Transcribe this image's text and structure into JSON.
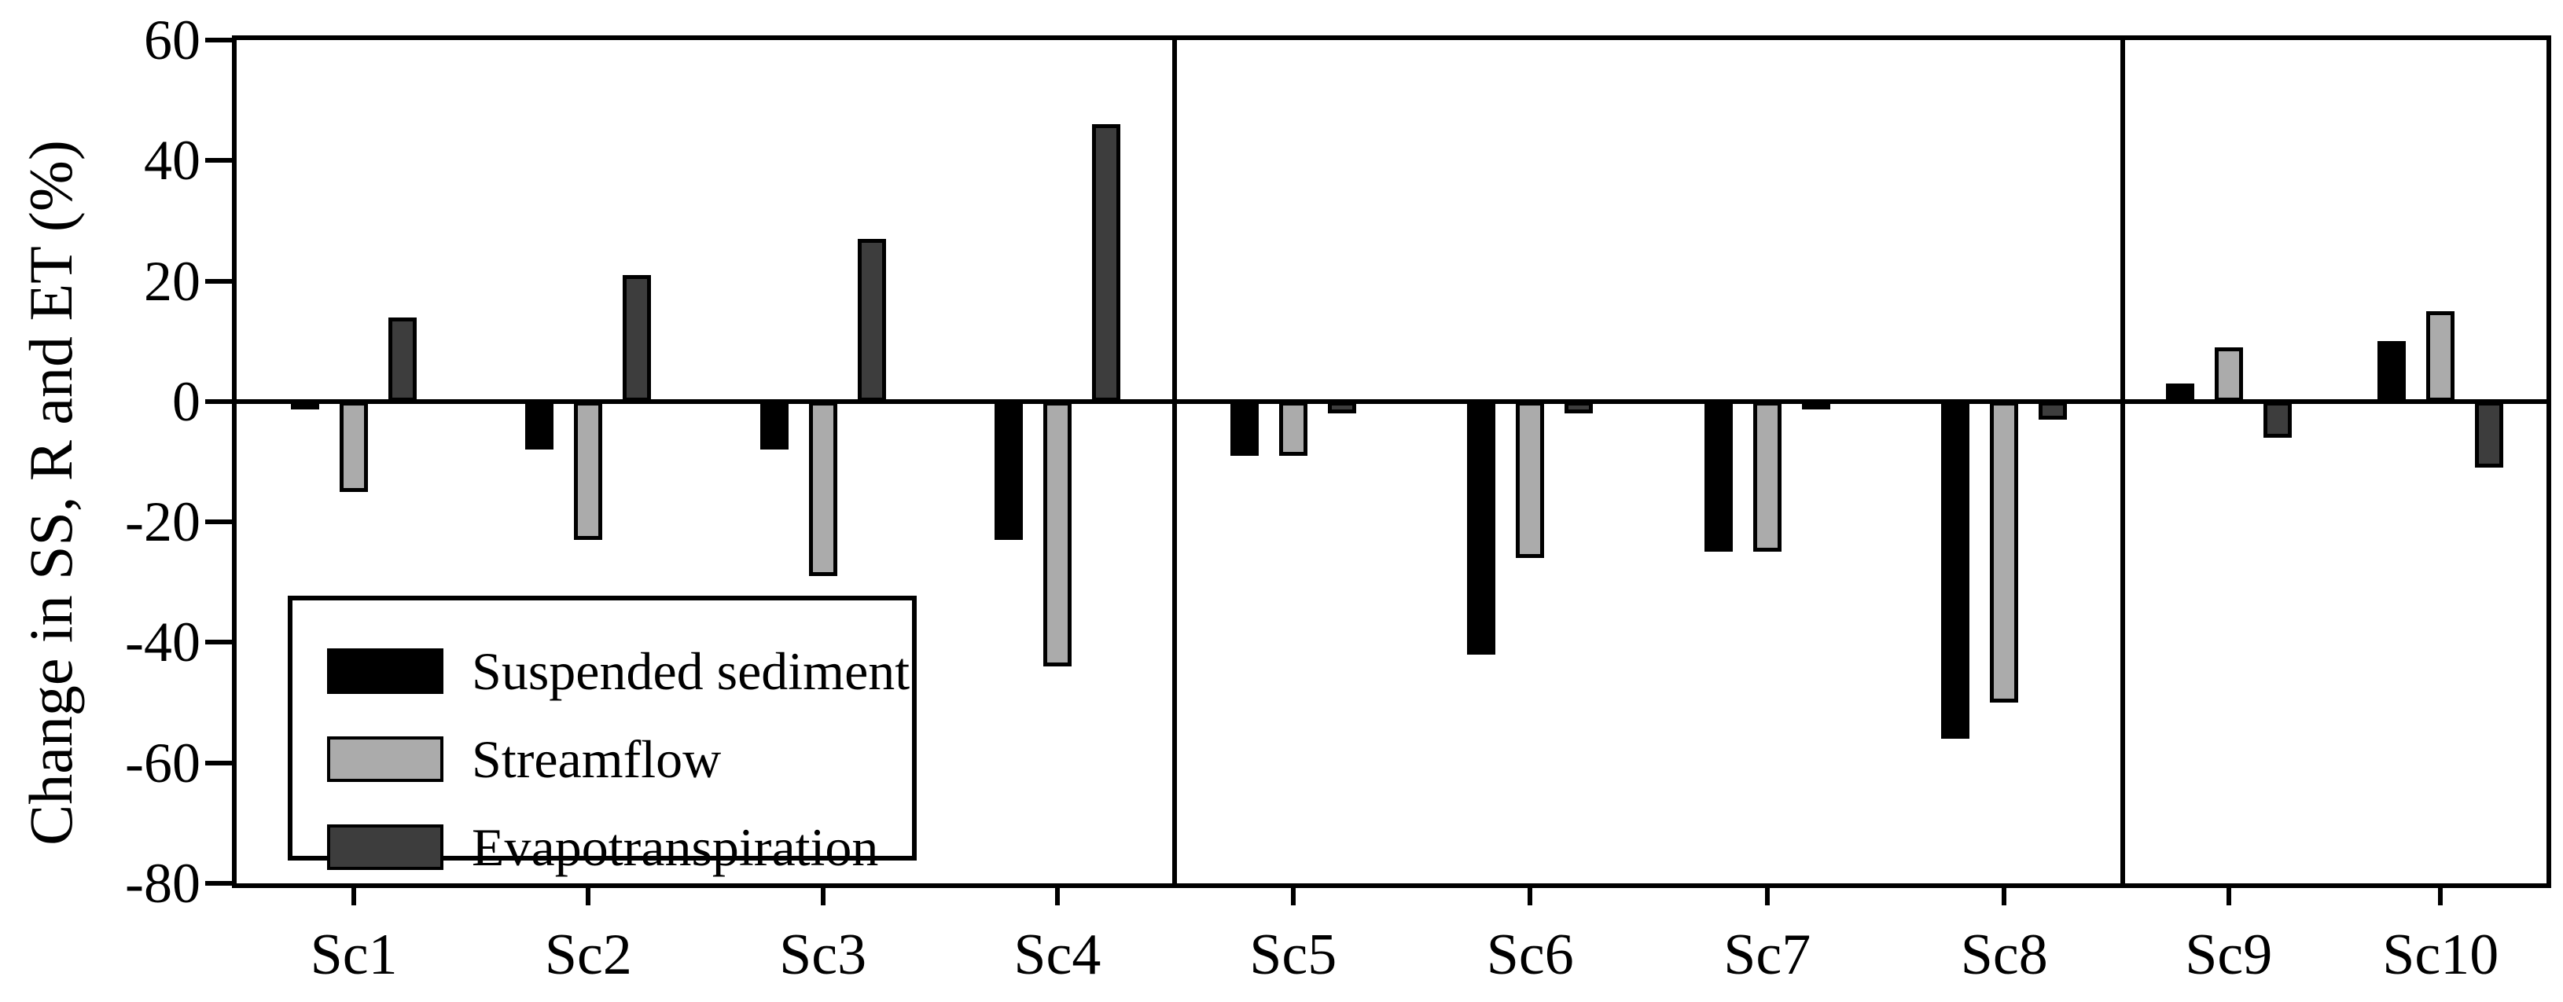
{
  "chart_data": {
    "type": "bar",
    "title": "",
    "ylabel": "Change in SS, R and ET (%)",
    "xlabel": "",
    "ylim": [
      -80,
      60
    ],
    "yticks": [
      60,
      40,
      20,
      0,
      -20,
      -40,
      -60,
      -80
    ],
    "categories": [
      "Sc1",
      "Sc2",
      "Sc3",
      "Sc4",
      "Sc5",
      "Sc6",
      "Sc7",
      "Sc8",
      "Sc9",
      "Sc10"
    ],
    "panels": [
      [
        "Sc1",
        "Sc2",
        "Sc3",
        "Sc4"
      ],
      [
        "Sc5",
        "Sc6",
        "Sc7",
        "Sc8"
      ],
      [
        "Sc9",
        "Sc10"
      ]
    ],
    "series": [
      {
        "name": "Suspended sediment",
        "color": "#000000",
        "values": [
          -1,
          -8,
          -8,
          -23,
          -9,
          -42,
          -25,
          -56,
          3,
          10
        ]
      },
      {
        "name": "Streamflow",
        "color": "#ababab",
        "values": [
          -15,
          -23,
          -29,
          -44,
          -9,
          -26,
          -25,
          -50,
          9,
          15
        ]
      },
      {
        "name": "Evapotranspiration",
        "color": "#3d3d3d",
        "values": [
          14,
          21,
          27,
          46,
          -2,
          -2,
          -1,
          -3,
          -6,
          -11
        ]
      }
    ],
    "legend_position": "lower-left",
    "grid": false,
    "panel_dividers": true,
    "frame_color": "#000000",
    "background_color": "#ffffff"
  }
}
